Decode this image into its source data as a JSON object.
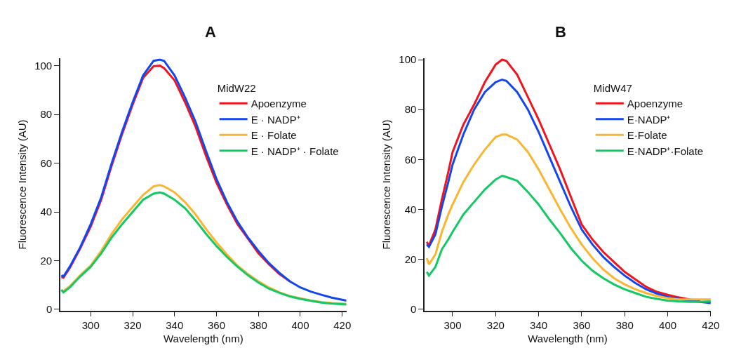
{
  "chart_data": [
    {
      "type": "line",
      "title": "A",
      "xlabel": "Wavelength (nm)",
      "ylabel": "Fluorescence Intensity (AU)",
      "legend_title": "MidW22",
      "legend": "top right",
      "xlim": [
        285.5,
        422
      ],
      "ylim": [
        -0.5,
        103
      ],
      "xticks": [
        300,
        320,
        340,
        360,
        380,
        400,
        420
      ],
      "yticks": [
        0,
        20,
        40,
        60,
        80,
        100
      ],
      "series": [
        {
          "name": "Apoenzyme",
          "color": "#f0141e",
          "x": [
            286,
            287,
            290,
            295,
            300,
            305,
            310,
            315,
            320,
            325,
            330,
            333,
            335,
            340,
            345,
            350,
            355,
            360,
            365,
            370,
            375,
            380,
            385,
            390,
            395
          ],
          "values": [
            13.3,
            13,
            17,
            25,
            34,
            45,
            59,
            72,
            84,
            95,
            99.8,
            100,
            99,
            94,
            85,
            75,
            63,
            52,
            43,
            35,
            29,
            23,
            18.5,
            14.5,
            11.5
          ]
        },
        {
          "name": "E · NADP⁺",
          "color": "#1446f0",
          "x": [
            286,
            287,
            290,
            295,
            300,
            305,
            310,
            315,
            320,
            325,
            330,
            333,
            335,
            340,
            345,
            350,
            355,
            360,
            365,
            370,
            375,
            380,
            385,
            390,
            395,
            400,
            405,
            410,
            415,
            422
          ],
          "values": [
            14,
            13.5,
            17.5,
            25.5,
            35,
            46,
            60,
            73,
            85,
            96,
            102,
            102.5,
            102,
            96,
            87,
            77,
            65,
            53.5,
            44,
            36,
            29.5,
            24,
            19,
            15,
            11.5,
            9,
            7.3,
            6,
            4.8,
            3.6
          ]
        },
        {
          "name": "E · Folate",
          "color": "#fbb531",
          "x": [
            286,
            287,
            290,
            295,
            300,
            305,
            310,
            315,
            320,
            325,
            330,
            333,
            335,
            340,
            345,
            350,
            355,
            360,
            365,
            370,
            375,
            380,
            385,
            390,
            395,
            400,
            405,
            410,
            415,
            422
          ],
          "values": [
            8,
            7.5,
            9.5,
            14,
            18,
            24,
            31,
            37,
            42,
            47,
            50.5,
            51,
            50.5,
            48,
            44,
            39,
            33,
            27.5,
            22.5,
            18,
            14.5,
            11.5,
            9,
            7,
            5.5,
            4.5,
            3.7,
            3,
            2.6,
            2.3
          ]
        },
        {
          "name": "E · NADP⁺ · Folate",
          "color": "#14c864",
          "x": [
            286,
            287,
            290,
            295,
            300,
            305,
            310,
            315,
            320,
            325,
            330,
            333,
            335,
            340,
            345,
            350,
            355,
            360,
            365,
            370,
            375,
            380,
            385,
            390,
            395,
            400,
            405,
            410,
            415,
            422
          ],
          "values": [
            8,
            7,
            9,
            13.5,
            17.5,
            23,
            29.5,
            35,
            40,
            45,
            47.5,
            48,
            47.5,
            45,
            41.5,
            36.5,
            31,
            26,
            21.5,
            17.5,
            14,
            11,
            8.5,
            6.8,
            5.3,
            4.3,
            3.5,
            2.8,
            2.4,
            2
          ]
        }
      ]
    },
    {
      "type": "line",
      "title": "B",
      "xlabel": "Wavelength (nm)",
      "ylabel": "Fluorescence Intensity (AU)",
      "legend_title": "MidW47",
      "legend": "top right",
      "xlim": [
        287,
        420
      ],
      "ylim": [
        -0.5,
        100.5
      ],
      "xticks": [
        300,
        320,
        340,
        360,
        380,
        400,
        420
      ],
      "yticks": [
        0,
        20,
        40,
        60,
        80,
        100
      ],
      "series": [
        {
          "name": "Apoenzyme",
          "color": "#f0141e",
          "x": [
            288,
            289,
            292,
            295,
            298,
            300,
            305,
            310,
            315,
            320,
            323,
            325,
            330,
            335,
            340,
            345,
            350,
            355,
            360,
            365,
            370,
            375,
            380,
            385,
            390,
            395,
            400,
            405,
            410,
            415
          ],
          "values": [
            27,
            25.5,
            32,
            44,
            55,
            63,
            74,
            82,
            91,
            98,
            100,
            99.5,
            94,
            85,
            76,
            66,
            56,
            45,
            34,
            28,
            23,
            19,
            15,
            12,
            9,
            7,
            5.8,
            4.8,
            4,
            3.3
          ]
        },
        {
          "name": "E·NADP⁺",
          "color": "#1446f0",
          "x": [
            288,
            289,
            292,
            295,
            298,
            300,
            305,
            310,
            315,
            320,
            323,
            325,
            330,
            335,
            340,
            345,
            350,
            355,
            360,
            365,
            370,
            375,
            380,
            385,
            390,
            395,
            400,
            405,
            410,
            415,
            420
          ],
          "values": [
            26,
            25,
            30,
            41,
            51,
            58,
            70,
            80,
            87,
            91,
            92,
            91.5,
            87,
            80,
            71,
            61,
            51,
            41,
            32,
            26,
            21,
            17,
            13.5,
            10.5,
            8,
            6.3,
            5,
            4.2,
            3.5,
            3,
            2.5
          ]
        },
        {
          "name": "E·Folate",
          "color": "#fbb531",
          "x": [
            288,
            289,
            292,
            295,
            298,
            300,
            305,
            310,
            315,
            320,
            323,
            325,
            330,
            335,
            340,
            345,
            350,
            355,
            360,
            365,
            370,
            375,
            380,
            385,
            390,
            395,
            400,
            405,
            410,
            415,
            420
          ],
          "values": [
            20.5,
            18,
            22,
            31,
            38,
            42,
            51,
            58,
            64,
            69,
            70,
            70,
            68,
            63,
            56,
            48,
            40,
            32.5,
            26,
            20.5,
            16,
            12.5,
            10,
            8,
            6.5,
            5.3,
            4.5,
            4,
            4,
            4,
            4
          ]
        },
        {
          "name": "E·NADP⁺·Folate",
          "color": "#14c864",
          "x": [
            288,
            289,
            292,
            295,
            298,
            300,
            305,
            310,
            315,
            320,
            323,
            325,
            330,
            335,
            340,
            345,
            350,
            355,
            360,
            365,
            370,
            375,
            380,
            385,
            390,
            395,
            400,
            405,
            410,
            415,
            420
          ],
          "values": [
            15,
            13.5,
            17,
            24,
            28,
            31,
            38,
            43,
            48,
            52,
            53.5,
            53,
            51.5,
            47,
            42,
            36,
            30.5,
            24.5,
            19.5,
            15.5,
            12.5,
            10,
            8,
            6.5,
            5,
            4.2,
            3.5,
            3.2,
            3,
            3,
            3.2
          ]
        }
      ]
    }
  ]
}
